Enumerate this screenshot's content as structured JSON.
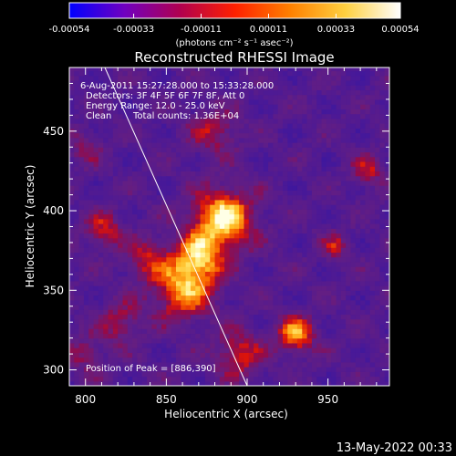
{
  "chart_data": {
    "type": "heatmap",
    "title": "Reconstructed RHESSI Image",
    "xlabel": "Heliocentric X (arcsec)",
    "ylabel": "Heliocentric Y (arcsec)",
    "xlim": [
      790,
      988
    ],
    "ylim": [
      290,
      490
    ],
    "xticks": [
      800,
      850,
      900,
      950
    ],
    "yticks": [
      300,
      350,
      400,
      450
    ],
    "colorbar": {
      "range": [
        -0.00054,
        0.00054
      ],
      "ticks": [
        -0.00054,
        -0.00033,
        -0.00011,
        0.00011,
        0.00033,
        0.00054
      ],
      "tick_labels": [
        "-0.00054",
        "-0.00033",
        "-0.00011",
        "0.00011",
        "0.00033",
        "0.00054"
      ],
      "unit_label": "(photons cm⁻² s⁻¹ asec⁻²)",
      "colors": [
        "#0000ff",
        "#7000c0",
        "#b00050",
        "#ff2000",
        "#ff8000",
        "#ffd040",
        "#ffffff"
      ]
    },
    "annotations": [
      "6-Aug-2011 15:27:28.000 to 15:33:28.000",
      "Detectors: 3F 4F 5F 6F 7F 8F, Att 0",
      "Energy Range: 12.0 - 25.0 keV",
      "Clean",
      "Total counts: 1.36E+04"
    ],
    "peak_label": "Position of Peak = [886,390]",
    "peak": [
      886,
      390
    ],
    "limb_line": [
      [
        812,
        490
      ],
      [
        900,
        290
      ]
    ],
    "sources": [
      {
        "x": 885,
        "y": 395,
        "sigma": 13,
        "amp": 1.0
      },
      {
        "x": 870,
        "y": 370,
        "sigma": 11,
        "amp": 0.75
      },
      {
        "x": 860,
        "y": 350,
        "sigma": 13,
        "amp": 0.75
      },
      {
        "x": 838,
        "y": 370,
        "sigma": 9,
        "amp": 0.45
      },
      {
        "x": 812,
        "y": 388,
        "sigma": 8,
        "amp": 0.5
      },
      {
        "x": 822,
        "y": 330,
        "sigma": 9,
        "amp": 0.45
      },
      {
        "x": 895,
        "y": 310,
        "sigma": 10,
        "amp": 0.55
      },
      {
        "x": 930,
        "y": 322,
        "sigma": 8,
        "amp": 0.8
      },
      {
        "x": 880,
        "y": 450,
        "sigma": 10,
        "amp": 0.45
      },
      {
        "x": 975,
        "y": 425,
        "sigma": 7,
        "amp": 0.45
      },
      {
        "x": 955,
        "y": 378,
        "sigma": 6,
        "amp": 0.4
      },
      {
        "x": 800,
        "y": 310,
        "sigma": 8,
        "amp": 0.35
      },
      {
        "x": 800,
        "y": 440,
        "sigma": 7,
        "amp": 0.35
      }
    ]
  },
  "timestamp": "13-May-2022 00:33"
}
